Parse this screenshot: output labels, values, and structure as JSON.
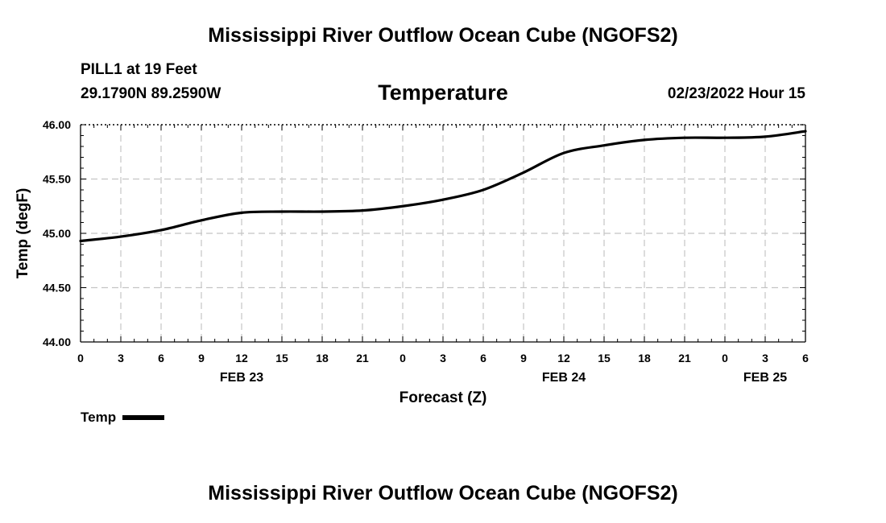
{
  "header": {
    "title": "Mississippi River Outflow Ocean Cube (NGOFS2)",
    "station": "PILL1 at 19 Feet",
    "coords": "29.1790N  89.2590W",
    "plot_title": "Temperature",
    "datetime": "02/23/2022 Hour 15"
  },
  "footer": {
    "title": "Mississippi River Outflow Ocean Cube (NGOFS2)"
  },
  "legend": {
    "label": "Temp",
    "color": "#000000"
  },
  "chart_data": {
    "type": "line",
    "title": "Temperature",
    "xlabel": "Forecast (Z)",
    "ylabel": "Temp (degF)",
    "xlim": [
      0,
      54
    ],
    "ylim": [
      44.0,
      46.0
    ],
    "yticks": [
      "44.00",
      "44.50",
      "45.00",
      "45.50",
      "46.00"
    ],
    "ytick_values": [
      44.0,
      44.5,
      45.0,
      45.5,
      46.0
    ],
    "xtick_labels": [
      "0",
      "3",
      "6",
      "9",
      "12",
      "15",
      "18",
      "21",
      "0",
      "3",
      "6",
      "9",
      "12",
      "15",
      "18",
      "21",
      "0",
      "3",
      "6"
    ],
    "date_labels": [
      {
        "label": "FEB 23",
        "hour": 12
      },
      {
        "label": "FEB 24",
        "hour": 36
      },
      {
        "label": "FEB 25",
        "hour": 51
      }
    ],
    "grid": true,
    "series": [
      {
        "name": "Temp",
        "color": "#000000",
        "x": [
          0,
          3,
          6,
          9,
          12,
          15,
          18,
          21,
          24,
          27,
          30,
          33,
          36,
          39,
          42,
          45,
          48,
          51,
          54
        ],
        "values": [
          44.93,
          44.97,
          45.03,
          45.12,
          45.19,
          45.2,
          45.2,
          45.21,
          45.25,
          45.31,
          45.4,
          45.56,
          45.74,
          45.81,
          45.86,
          45.88,
          45.88,
          45.89,
          45.94
        ]
      }
    ]
  }
}
